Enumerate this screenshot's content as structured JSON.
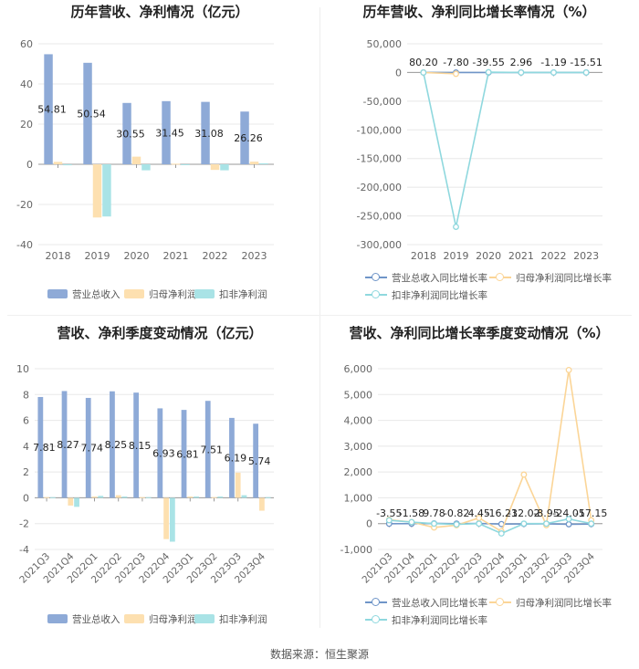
{
  "source": "数据来源：恒生聚源",
  "colors": {
    "revenue": "#8eaad7",
    "netprofit": "#fde0b0",
    "deducted": "#a9e3e6",
    "line_revenue": "#6f95c8",
    "line_netprofit": "#fbd597",
    "line_deducted": "#8fd8de",
    "grid": "#e8e8e8",
    "axis": "#999999",
    "text": "#666666"
  },
  "chart_data": [
    {
      "id": "annual-bar",
      "type": "bar",
      "title": "历年营收、净利情况（亿元）",
      "categories": [
        "2018",
        "2019",
        "2020",
        "2021",
        "2022",
        "2023"
      ],
      "ylim": [
        -40,
        60
      ],
      "yticks": [
        -40,
        -20,
        0,
        20,
        40,
        60
      ],
      "series": [
        {
          "name": "营业总收入",
          "values": [
            54.81,
            50.54,
            30.55,
            31.45,
            31.08,
            26.26
          ],
          "labels": [
            "54.81",
            "50.54",
            "30.55",
            "31.45",
            "31.08",
            "26.26"
          ]
        },
        {
          "name": "归母净利润",
          "values": [
            1.2,
            -26.5,
            3.8,
            0.3,
            -2.8,
            1.3
          ]
        },
        {
          "name": "扣非净利润",
          "values": [
            -0.5,
            -26.0,
            -3.0,
            -0.2,
            -3.0,
            0.5
          ]
        }
      ],
      "legend": "bottom",
      "grid": true
    },
    {
      "id": "annual-line",
      "type": "line",
      "title": "历年营收、净利同比增长率情况（%）",
      "categories": [
        "2018",
        "2019",
        "2020",
        "2021",
        "2022",
        "2023"
      ],
      "ylim": [
        -300000,
        50000
      ],
      "yticks": [
        -300000,
        -250000,
        -200000,
        -150000,
        -100000,
        -50000,
        0,
        50000
      ],
      "ytick_labels": [
        "-300,000",
        "-250,000",
        "-200,000",
        "-150,000",
        "-100,000",
        "-50,000",
        "0",
        "50,000"
      ],
      "series": [
        {
          "name": "营业总收入同比增长率",
          "values": [
            80.2,
            -7.8,
            -39.55,
            2.96,
            -1.19,
            -15.51
          ],
          "labels": [
            "80.20",
            "-7.80",
            "-39.55",
            "2.96",
            "-1.19",
            "-15.51"
          ]
        },
        {
          "name": "归母净利润同比增长率",
          "values": [
            20,
            -2300,
            null,
            null,
            null,
            null
          ]
        },
        {
          "name": "扣非净利润同比增长率",
          "values": [
            -50,
            -269000,
            500,
            0,
            0,
            0
          ]
        }
      ],
      "legend": "bottom",
      "grid": true
    },
    {
      "id": "quarter-bar",
      "type": "bar",
      "title": "营收、净利季度变动情况（亿元）",
      "categories": [
        "2021Q3",
        "2021Q4",
        "2022Q1",
        "2022Q2",
        "2022Q3",
        "2022Q4",
        "2023Q1",
        "2023Q2",
        "2023Q3",
        "2023Q4"
      ],
      "ylim": [
        -4,
        10
      ],
      "yticks": [
        -4,
        -2,
        0,
        2,
        4,
        6,
        8,
        10
      ],
      "series": [
        {
          "name": "营业总收入",
          "values": [
            7.81,
            8.27,
            7.74,
            8.25,
            8.15,
            6.93,
            6.81,
            7.51,
            6.19,
            5.74
          ],
          "labels": [
            "7.81",
            "8.27",
            "7.74",
            "8.25",
            "8.15",
            "6.93",
            "6.81",
            "7.51",
            "6.19",
            "5.74"
          ]
        },
        {
          "name": "归母净利润",
          "values": [
            0.05,
            -0.6,
            0.1,
            0.2,
            0.05,
            -3.2,
            0.1,
            0.05,
            1.95,
            -1.0
          ]
        },
        {
          "name": "扣非净利润",
          "values": [
            0.05,
            -0.7,
            0.15,
            0.1,
            0.05,
            -3.4,
            0.1,
            0.1,
            0.2,
            0.05
          ]
        }
      ],
      "legend": "bottom",
      "grid": true
    },
    {
      "id": "quarter-line",
      "type": "line",
      "title": "营收、净利同比增长率季度变动情况（%）",
      "categories": [
        "2021Q3",
        "2021Q4",
        "2022Q1",
        "2022Q2",
        "2022Q3",
        "2022Q4",
        "2023Q1",
        "2023Q2",
        "2023Q3",
        "2023Q4"
      ],
      "ylim": [
        -1000,
        6000
      ],
      "yticks": [
        -1000,
        0,
        1000,
        2000,
        3000,
        4000,
        5000,
        6000
      ],
      "ytick_labels": [
        "-1,000",
        "0",
        "1,000",
        "2,000",
        "3,000",
        "4,000",
        "5,000",
        "6,000"
      ],
      "series": [
        {
          "name": "营业总收入同比增长率",
          "values": [
            -3.55,
            -1.58,
            9.78,
            -0.82,
            4.45,
            -16.23,
            -12.02,
            -8.95,
            -24.05,
            -17.15
          ],
          "labels": [
            "-3.55",
            "-1.58",
            "9.78",
            "-0.82",
            "4.45",
            "-16.23",
            "-12.02",
            "-8.95",
            "-24.05",
            "-17.15"
          ]
        },
        {
          "name": "归母净利润同比增长率",
          "values": [
            150,
            60,
            -150,
            -60,
            220,
            -300,
            1900,
            -60,
            5950,
            130
          ]
        },
        {
          "name": "扣非净利润同比增长率",
          "values": [
            130,
            60,
            0,
            -30,
            0,
            -380,
            0,
            0,
            180,
            0
          ]
        }
      ],
      "legend": "bottom",
      "grid": true
    }
  ]
}
